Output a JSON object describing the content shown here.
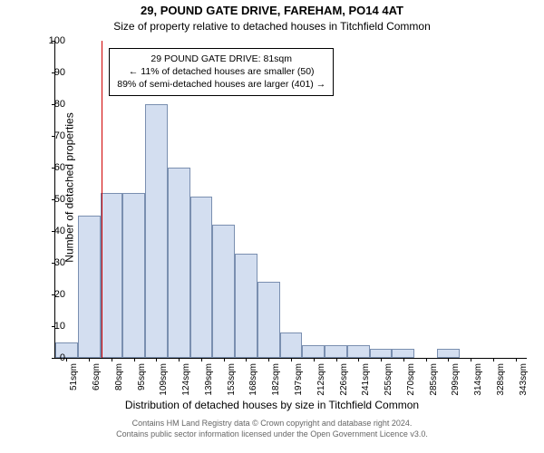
{
  "title_main": "29, POUND GATE DRIVE, FAREHAM, PO14 4AT",
  "title_sub": "Size of property relative to detached houses in Titchfield Common",
  "ylabel": "Number of detached properties",
  "xlabel": "Distribution of detached houses by size in Titchfield Common",
  "footer1": "Contains HM Land Registry data © Crown copyright and database right 2024.",
  "footer2": "Contains public sector information licensed under the Open Government Licence v3.0.",
  "chart": {
    "type": "bar",
    "ylim": [
      0,
      100
    ],
    "ytick_step": 10,
    "background_color": "#ffffff",
    "bar_fill": "#d3def0",
    "bar_stroke": "#7a8fb0",
    "marker_color": "#d00000",
    "categories": [
      "51sqm",
      "66sqm",
      "80sqm",
      "95sqm",
      "109sqm",
      "124sqm",
      "139sqm",
      "153sqm",
      "168sqm",
      "182sqm",
      "197sqm",
      "212sqm",
      "226sqm",
      "241sqm",
      "255sqm",
      "270sqm",
      "285sqm",
      "299sqm",
      "314sqm",
      "328sqm",
      "343sqm"
    ],
    "values": [
      5,
      45,
      52,
      52,
      80,
      60,
      51,
      42,
      33,
      24,
      8,
      4,
      4,
      4,
      3,
      3,
      0,
      3,
      0,
      0,
      0
    ],
    "marker_index": 2,
    "marker_offset": 0.07
  },
  "infobox": {
    "line1": "29 POUND GATE DRIVE: 81sqm",
    "line2": "← 11% of detached houses are smaller (50)",
    "line3": "89% of semi-detached houses are larger (401) →"
  }
}
